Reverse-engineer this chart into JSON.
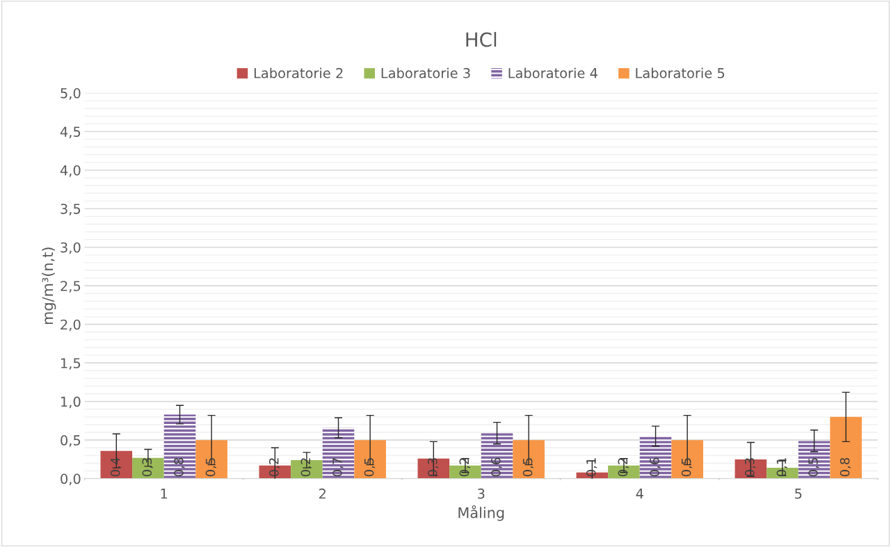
{
  "chart_data": {
    "type": "bar",
    "title": "HCl",
    "xlabel": "Måling",
    "ylabel": "mg/m³(n,t)",
    "categories": [
      "1",
      "2",
      "3",
      "4",
      "5"
    ],
    "series": [
      {
        "name": "Laboratorie 2",
        "color": "#c0504d",
        "values": [
          0.36,
          0.17,
          0.26,
          0.08,
          0.25
        ],
        "errors": [
          0.22,
          0.23,
          0.22,
          0.15,
          0.22
        ],
        "value_labels": [
          "0,4",
          "0,2",
          "0,3",
          "0,1",
          "0,3"
        ]
      },
      {
        "name": "Laboratorie 3",
        "color": "#9bbb59",
        "values": [
          0.27,
          0.24,
          0.17,
          0.17,
          0.14
        ],
        "errors": [
          0.11,
          0.1,
          0.09,
          0.09,
          0.1
        ],
        "value_labels": [
          "0,3",
          "0,2",
          "0,2",
          "0,2",
          "0,1"
        ]
      },
      {
        "name": "Laboratorie 4",
        "color": "#8064a2",
        "values": [
          0.83,
          0.66,
          0.59,
          0.55,
          0.49
        ],
        "errors": [
          0.12,
          0.13,
          0.14,
          0.13,
          0.14
        ],
        "value_labels": [
          "0,8",
          "0,7",
          "0,6",
          "0,6",
          "0,5"
        ]
      },
      {
        "name": "Laboratorie 5",
        "color": "#f79646",
        "values": [
          0.5,
          0.5,
          0.5,
          0.5,
          0.8
        ],
        "errors": [
          0.32,
          0.32,
          0.32,
          0.32,
          0.32
        ],
        "value_labels": [
          "0,5",
          "0,5",
          "0,5",
          "0,5",
          "0,8"
        ]
      }
    ],
    "ylim": [
      0,
      5
    ],
    "yticks": [
      {
        "value": 0,
        "label": "0,0"
      },
      {
        "value": 0.5,
        "label": "0,5"
      },
      {
        "value": 1,
        "label": "1,0"
      },
      {
        "value": 1.5,
        "label": "1,5"
      },
      {
        "value": 2,
        "label": "2,0"
      },
      {
        "value": 2.5,
        "label": "2,5"
      },
      {
        "value": 3,
        "label": "3,0"
      },
      {
        "value": 3.5,
        "label": "3,5"
      },
      {
        "value": 4,
        "label": "4,0"
      },
      {
        "value": 4.5,
        "label": "4,5"
      },
      {
        "value": 5,
        "label": "5,0"
      }
    ],
    "grid": "y",
    "legend": "top"
  }
}
